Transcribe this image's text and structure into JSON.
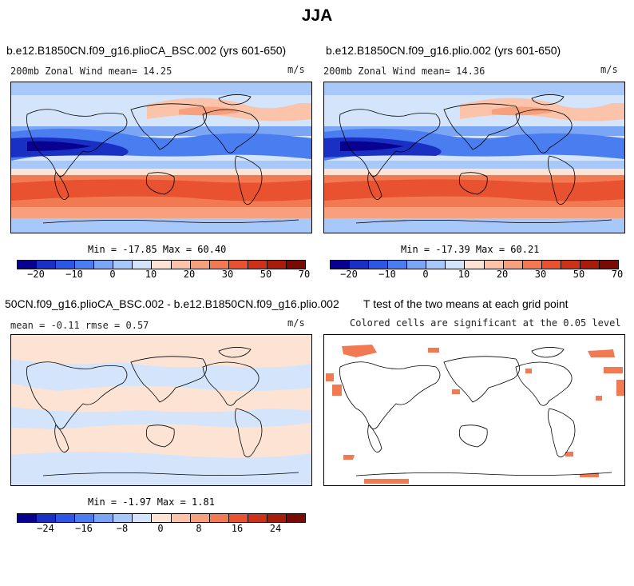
{
  "title": "JJA",
  "colors": {
    "scale_a": [
      "#08008f",
      "#1a2fc4",
      "#2d56e3",
      "#4a7df0",
      "#7aa6f5",
      "#a9c8fa",
      "#d4e5fb",
      "#fde3d4",
      "#fbc3aa",
      "#f7a07d",
      "#f27a52",
      "#e85230",
      "#cc3218",
      "#a81c0c",
      "#7a0a04"
    ],
    "scale_b": [
      "#08008f",
      "#1a2fc4",
      "#2d56e3",
      "#4a7df0",
      "#7aa6f5",
      "#a9c8fa",
      "#d4e5fb",
      "#fde3d4",
      "#fbc3aa",
      "#f7a07d",
      "#f27a52",
      "#e85230",
      "#cc3218",
      "#a81c0c",
      "#7a0a04"
    ]
  },
  "panels": {
    "p1": {
      "title": "b.e12.B1850CN.f09_g16.plioCA_BSC.002 (yrs 601-650)",
      "left_label": "200mb Zonal Wind  mean=  14.25",
      "units": "m/s",
      "minmax": "Min = -17.85 Max =  60.40"
    },
    "p2": {
      "title": "b.e12.B1850CN.f09_g16.plio.002 (yrs 601-650)",
      "left_label": "200mb Zonal Wind  mean=  14.36",
      "units": "m/s",
      "minmax": "Min = -17.39 Max =  60.21"
    },
    "p3": {
      "title": "50CN.f09_g16.plioCA_BSC.002 - b.e12.B1850CN.f09_g16.plio.002",
      "left_label": "mean =  -0.11    rmse =    0.57",
      "units": "m/s",
      "minmax": "Min =  -1.97 Max =   1.81"
    },
    "p4": {
      "title": "T test of the two means at each grid point",
      "subtitle": "Colored cells are significant at the 0.05 level"
    }
  },
  "colorbars": {
    "cb1": {
      "ticks": [
        "−20",
        "−10",
        "0",
        "10",
        "20",
        "30",
        "50",
        "70"
      ]
    },
    "cb2": {
      "ticks": [
        "−20",
        "−10",
        "0",
        "10",
        "20",
        "30",
        "50",
        "70"
      ]
    },
    "cb3": {
      "ticks": [
        "−24",
        "−16",
        "−8",
        "0",
        "8",
        "16",
        "24"
      ]
    }
  },
  "chart_data": [
    {
      "type": "heatmap",
      "title": "b.e12.B1850CN.f09_g16.plioCA_BSC.002 (yrs 601-650)",
      "variable": "200mb Zonal Wind",
      "units": "m/s",
      "mean": 14.25,
      "min": -17.85,
      "max": 60.4,
      "colorbar_ticks": [
        -20,
        -10,
        0,
        10,
        20,
        30,
        50,
        70
      ]
    },
    {
      "type": "heatmap",
      "title": "b.e12.B1850CN.f09_g16.plio.002 (yrs 601-650)",
      "variable": "200mb Zonal Wind",
      "units": "m/s",
      "mean": 14.36,
      "min": -17.39,
      "max": 60.21,
      "colorbar_ticks": [
        -20,
        -10,
        0,
        10,
        20,
        30,
        50,
        70
      ]
    },
    {
      "type": "heatmap",
      "title": "50CN.f09_g16.plioCA_BSC.002 - b.e12.B1850CN.f09_g16.plio.002",
      "units": "m/s",
      "mean": -0.11,
      "rmse": 0.57,
      "min": -1.97,
      "max": 1.81,
      "colorbar_ticks": [
        -24,
        -16,
        -8,
        0,
        8,
        16,
        24
      ]
    },
    {
      "type": "heatmap",
      "title": "T test of the two means at each grid point",
      "subtitle": "Colored cells are significant at the 0.05 level"
    }
  ]
}
